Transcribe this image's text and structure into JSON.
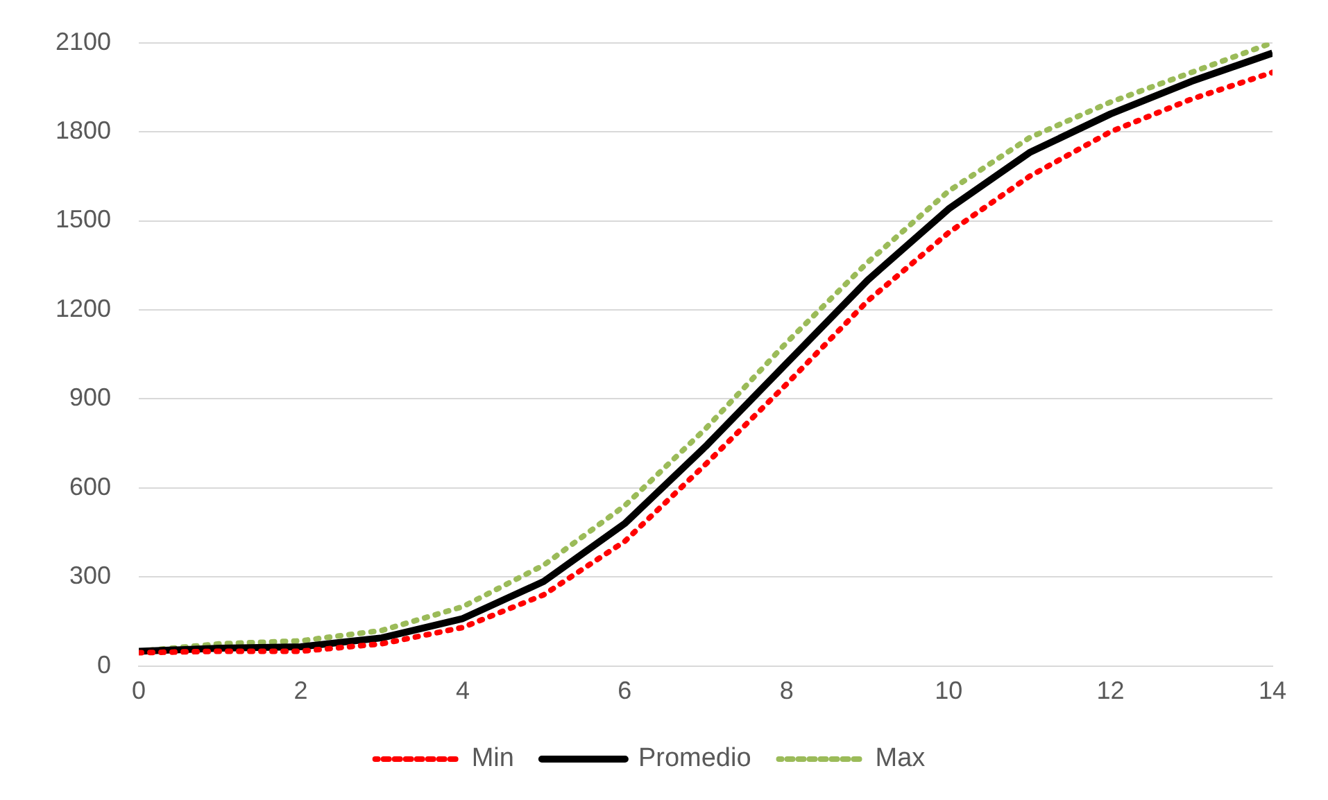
{
  "chart_data": {
    "type": "line",
    "x": [
      0,
      1,
      2,
      3,
      4,
      5,
      6,
      7,
      8,
      9,
      10,
      11,
      12,
      13,
      14
    ],
    "series": [
      {
        "name": "Min",
        "color": "#ff0000",
        "line_style": "dotted",
        "values": [
          45,
          50,
          50,
          75,
          130,
          240,
          420,
          680,
          950,
          1230,
          1460,
          1650,
          1800,
          1910,
          2000
        ]
      },
      {
        "name": "Promedio",
        "color": "#000000",
        "line_style": "solid",
        "values": [
          50,
          60,
          65,
          95,
          160,
          285,
          480,
          740,
          1020,
          1300,
          1540,
          1730,
          1860,
          1970,
          2065
        ]
      },
      {
        "name": "Max",
        "color": "#9bbb59",
        "line_style": "dotted",
        "values": [
          50,
          75,
          85,
          120,
          200,
          340,
          540,
          800,
          1090,
          1360,
          1600,
          1780,
          1900,
          2000,
          2100
        ]
      }
    ],
    "xlim": [
      0,
      14
    ],
    "xticks": [
      0,
      2,
      4,
      6,
      8,
      10,
      12,
      14
    ],
    "ylim": [
      0,
      2100
    ],
    "yticks": [
      0,
      300,
      600,
      900,
      1200,
      1500,
      1800,
      2100
    ],
    "grid": "y",
    "legend": "bottom",
    "marker": "none"
  }
}
